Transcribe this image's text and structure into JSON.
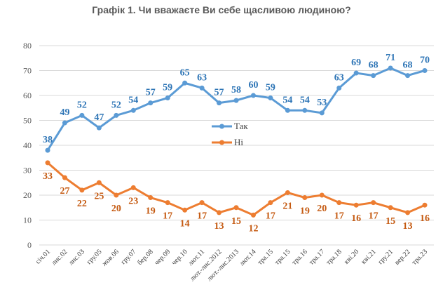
{
  "chart_data": {
    "type": "line",
    "title": "Графік 1. Чи вважаєте Ви себе щасливою людиною?",
    "xlabel": "",
    "ylabel": "",
    "ylim": [
      0,
      80
    ],
    "yticks": [
      0,
      10,
      20,
      30,
      40,
      50,
      60,
      70,
      80
    ],
    "grid": true,
    "legend_position": "center",
    "categories": [
      "січ.01",
      "лис.02",
      "лис.03",
      "гру.05",
      "жов.06",
      "гру.07",
      "бер.08",
      "чер.09",
      "чер.10",
      "лют.11",
      "лют.-лис.2012",
      "лют.-лис.2013",
      "лют.14",
      "тра.15",
      "тра.15",
      "тра.16",
      "тра.17",
      "тра.18",
      "кві.20",
      "кві.21",
      "гру.21",
      "вер.22",
      "тра.23"
    ],
    "series": [
      {
        "name": "Так",
        "color": "#5B9BD5",
        "label_color": "#2E75B6",
        "values": [
          38,
          49,
          52,
          47,
          52,
          54,
          57,
          59,
          65,
          63,
          57,
          58,
          60,
          59,
          54,
          54,
          53,
          63,
          69,
          68,
          71,
          68,
          70
        ]
      },
      {
        "name": "Ні",
        "color": "#ED7D31",
        "label_color": "#C55A11",
        "values": [
          33,
          27,
          22,
          25,
          20,
          23,
          19,
          17,
          14,
          17,
          13,
          15,
          12,
          17,
          21,
          19,
          20,
          17,
          16,
          17,
          15,
          13,
          16
        ]
      }
    ]
  }
}
